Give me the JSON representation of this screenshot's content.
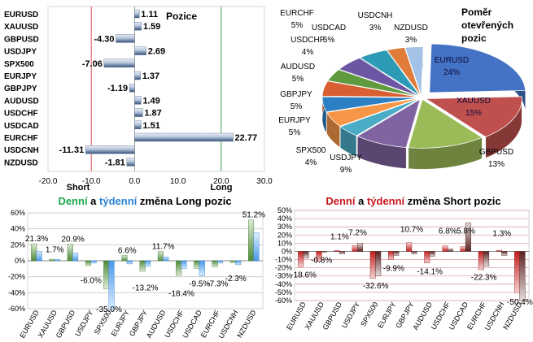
{
  "colors": {
    "green_label": "#1aa64b",
    "blue_label": "#2a83d8",
    "red_label": "#c8161d",
    "text": "#000000"
  },
  "chart_data": [
    {
      "type": "bar",
      "orientation": "horizontal",
      "title": "Pozice",
      "categories": [
        "EURUSD",
        "XAUUSD",
        "GBPUSD",
        "USDJPY",
        "SPX500",
        "EURJPY",
        "GBPJPY",
        "AUDUSD",
        "USDCHF",
        "USDCAD",
        "EURCHF",
        "USDCNH",
        "NZDUSD"
      ],
      "values": [
        1.11,
        1.59,
        -4.3,
        2.69,
        -7.06,
        1.37,
        -1.19,
        1.49,
        1.87,
        1.51,
        22.77,
        -11.31,
        -1.81
      ],
      "value_labels": [
        "1.11",
        "1.59",
        "-4.30",
        "2.69",
        "-7.06",
        "1.37",
        "-1.19",
        "1.49",
        "1.87",
        "1.51",
        "22.77",
        "-11.31",
        "-1.81"
      ],
      "xlim": [
        -20,
        30
      ],
      "ticks": [
        "-20.0",
        "-10.0",
        "0.0",
        "10.0",
        "20.0",
        "30.0"
      ],
      "annotations": {
        "short": "Short",
        "long": "Long"
      }
    },
    {
      "type": "pie",
      "title_lines": [
        "Poměr",
        "otevřených",
        "pozic"
      ],
      "slices": [
        {
          "label": "EURUSD",
          "pct": "24%",
          "value": 24
        },
        {
          "label": "XAUUSD",
          "pct": "15%",
          "value": 15
        },
        {
          "label": "GBPUSD",
          "pct": "13%",
          "value": 13
        },
        {
          "label": "USDJPY",
          "pct": "9%",
          "value": 9
        },
        {
          "label": "SPX500",
          "pct": "4%",
          "value": 4
        },
        {
          "label": "EURJPY",
          "pct": "5%",
          "value": 5
        },
        {
          "label": "GBPJPY",
          "pct": "5%",
          "value": 5
        },
        {
          "label": "AUDUSD",
          "pct": "5%",
          "value": 5
        },
        {
          "label": "USDCHF",
          "pct": "4%",
          "value": 4
        },
        {
          "label": "USDCAD",
          "pct": "5%",
          "value": 5
        },
        {
          "label": "EURCHF",
          "pct": "5%",
          "value": 5
        },
        {
          "label": "USDCNH",
          "pct": "3%",
          "value": 3
        },
        {
          "label": "NZDUSD",
          "pct": "3%",
          "value": 3
        }
      ]
    },
    {
      "type": "bar",
      "title_parts": [
        "Denní",
        " a ",
        "týdenní",
        " změna Long pozic"
      ],
      "categories": [
        "EURUSD",
        "XAUUSD",
        "GBPUSD",
        "USDJPY",
        "SPX500",
        "EURJPY",
        "GBPJPY",
        "AUDUSD",
        "USDCHF",
        "USDCAD",
        "EURCHF",
        "USDCNH",
        "NZDUSD"
      ],
      "series": [
        {
          "name": "Denní",
          "values": [
            21.3,
            2.0,
            20.9,
            -6.0,
            -35.0,
            6.6,
            -13.2,
            11.7,
            -18.4,
            -9.5,
            -7.3,
            -2.3,
            51.2
          ]
        },
        {
          "name": "týdenní",
          "values": [
            12.0,
            1.7,
            10.0,
            -3.0,
            -62.0,
            -4.0,
            -7.0,
            5.0,
            -10.0,
            -19.0,
            -3.0,
            -5.0,
            35.0
          ]
        }
      ],
      "data_labels": [
        {
          "text": "21.3%",
          "cat": 0,
          "v": 21.3
        },
        {
          "text": "1.7%",
          "cat": 1,
          "v": 7.5
        },
        {
          "text": "20.9%",
          "cat": 2,
          "v": 20.9
        },
        {
          "text": "-6.0%",
          "cat": 3,
          "v": -18
        },
        {
          "text": "-35.0%",
          "cat": 4,
          "v": -54
        },
        {
          "text": "6.6%",
          "cat": 5,
          "v": 6.6
        },
        {
          "text": "-13.2%",
          "cat": 6,
          "v": -27
        },
        {
          "text": "11.7%",
          "cat": 7,
          "v": 11.7
        },
        {
          "text": "-18.4%",
          "cat": 8,
          "v": -34
        },
        {
          "text": "-9.5%",
          "cat": 9,
          "v": -22
        },
        {
          "text": "-7.3%",
          "cat": 10,
          "v": -22
        },
        {
          "text": "-2.3%",
          "cat": 11,
          "v": -15
        },
        {
          "text": "51.2%",
          "cat": 12,
          "v": 51.2
        }
      ],
      "ylim": [
        -60,
        60
      ],
      "ticks": [
        "60%",
        "40%",
        "20%",
        "0%",
        "-20%",
        "-40%",
        "-60%"
      ]
    },
    {
      "type": "bar",
      "title_parts": [
        "Denní",
        " a ",
        "týdenní",
        " změna Short pozic"
      ],
      "categories": [
        "EURUSD",
        "XAUUSD",
        "GBPUSD",
        "USDJPY",
        "SPX500",
        "EURJPY",
        "GBPJPY",
        "AUDUSD",
        "USDCHF",
        "USDCAD",
        "EURCHF",
        "USDCNH",
        "NZDUSD"
      ],
      "series": [
        {
          "name": "Denní",
          "values": [
            -18.6,
            -12.0,
            1.1,
            7.2,
            -32.6,
            -9.9,
            10.7,
            -14.1,
            6.8,
            5.8,
            -22.3,
            1.3,
            -50.4
          ]
        },
        {
          "name": "týdenní",
          "values": [
            -8.0,
            -0.8,
            -3.0,
            10.0,
            -30.0,
            -5.0,
            -3.0,
            -6.0,
            3.0,
            35.0,
            -18.0,
            -5.0,
            -60.0
          ]
        }
      ],
      "data_labels": [
        {
          "text": "-18.6%",
          "cat": 0,
          "v": -22
        },
        {
          "text": "-0.8%",
          "cat": 1,
          "v": -4
        },
        {
          "text": "1.1%",
          "cat": 2,
          "v": 12
        },
        {
          "text": "7.2%",
          "cat": 3,
          "v": 17
        },
        {
          "text": "-32.6%",
          "cat": 4,
          "v": -35
        },
        {
          "text": "-9.9%",
          "cat": 5,
          "v": -14
        },
        {
          "text": "10.7%",
          "cat": 6,
          "v": 21
        },
        {
          "text": "-14.1%",
          "cat": 7,
          "v": -18
        },
        {
          "text": "6.8%",
          "cat": 8,
          "v": 19
        },
        {
          "text": "5.8%",
          "cat": 9,
          "v": 19
        },
        {
          "text": "-22.3%",
          "cat": 10,
          "v": -25
        },
        {
          "text": "1.3%",
          "cat": 11,
          "v": 16
        },
        {
          "text": "-50.4%",
          "cat": 12,
          "v": -55
        }
      ],
      "ylim": [
        -60,
        50
      ],
      "ticks": [
        "50%",
        "40%",
        "30%",
        "20%",
        "10%",
        "0%",
        "-10%",
        "-20%",
        "-30%",
        "-40%",
        "-50%",
        "-60%"
      ]
    }
  ]
}
